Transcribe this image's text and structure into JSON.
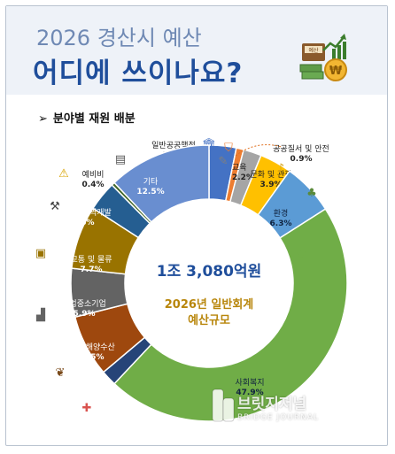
{
  "title": "2026 경산시 예산",
  "subtitle": "어디에 쓰이나요?",
  "section_label": "분야별 재원 배분",
  "section_marker": "➢",
  "icon_badge_text": "예산",
  "watermark": {
    "name": "브릿지저널",
    "sub": "BRIDGE JOURNAL"
  },
  "chart_data": {
    "type": "pie",
    "variant": "donut",
    "center_total": "1조 3,080억원",
    "center_line1": "2026년 일반회계",
    "center_line2": "예산규모",
    "slices": [
      {
        "label": "일반공공행정",
        "value": 3.3,
        "display": "3.3%",
        "color": "#4472c4",
        "icon": "building-icon"
      },
      {
        "label": "공공질서 및 안전",
        "value": 0.9,
        "display": "0.9%",
        "color": "#ed7d31",
        "icon": "shield-icon"
      },
      {
        "label": "교육",
        "value": 2.2,
        "display": "2.2%",
        "color": "#a5a5a5",
        "icon": "education-icon"
      },
      {
        "label": "문화 및 관광",
        "value": 3.9,
        "display": "3.9%",
        "color": "#ffc000",
        "icon": "culture-icon"
      },
      {
        "label": "환경",
        "value": 6.3,
        "display": "6.3%",
        "color": "#5b9bd5",
        "icon": "tree-icon"
      },
      {
        "label": "사회복지",
        "value": 47.9,
        "display": "47.9%",
        "color": "#70ad47",
        "icon": "welfare-icon"
      },
      {
        "label": "보건",
        "value": 1.9,
        "display": "1.9%",
        "color": "#264478",
        "icon": "health-cross-icon"
      },
      {
        "label": "농림해양수산",
        "value": 7.5,
        "display": "7.5%",
        "color": "#9e480e",
        "icon": "leaf-icon"
      },
      {
        "label": "산업중소기업",
        "value": 5.9,
        "display": "5.9%",
        "color": "#636363",
        "icon": "factory-icon"
      },
      {
        "label": "교통 및 물류",
        "value": 7.7,
        "display": "7.7%",
        "color": "#997300",
        "icon": "bus-icon"
      },
      {
        "label": "국토 및 지역개발",
        "value": 3.6,
        "display": "3.6%",
        "color": "#255e91",
        "icon": "construction-icon"
      },
      {
        "label": "예비비",
        "value": 0.4,
        "display": "0.4%",
        "color": "#43682b",
        "icon": "warning-icon"
      },
      {
        "label": "기타",
        "value": 12.5,
        "display": "12.5%",
        "color": "#698ed0",
        "icon": "document-icon"
      }
    ]
  }
}
